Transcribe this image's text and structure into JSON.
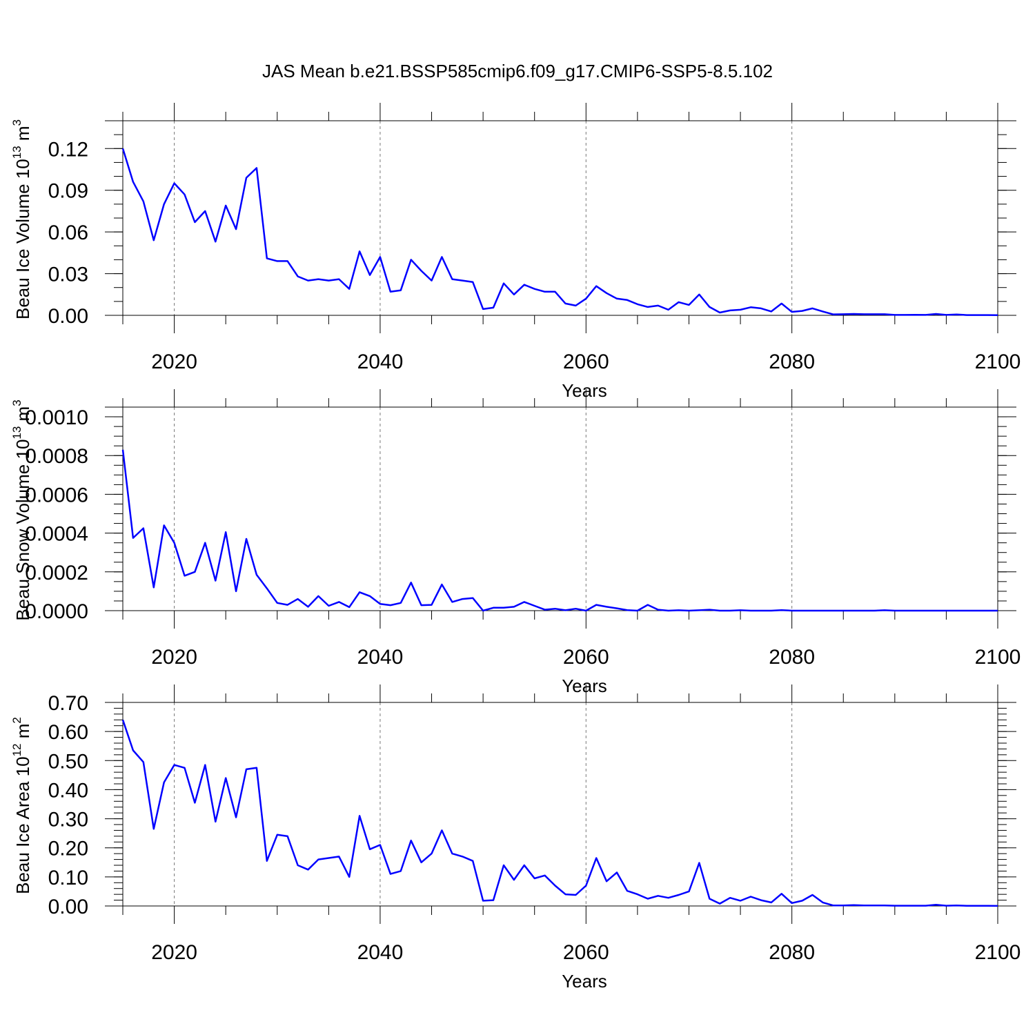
{
  "title": "JAS Mean b.e21.BSSP585cmip6.f09_g17.CMIP6-SSP5-8.5.102",
  "chart_data": [
    {
      "type": "line",
      "ylabel": "Beau Ice Volume 10",
      "ylabel_exp": "13",
      "ylabel_unit": " m",
      "ylabel_unit_exp": "3",
      "xlabel": "Years",
      "xlim": [
        2015,
        2100
      ],
      "ylim": [
        0,
        0.14
      ],
      "yticks": [
        0,
        0.03,
        0.06,
        0.09,
        0.12
      ],
      "ytick_labels": [
        "0.00",
        "0.03",
        "0.06",
        "0.09",
        "0.12"
      ],
      "yminor_step": 0.01,
      "xticks": [
        2020,
        2040,
        2060,
        2080,
        2100
      ],
      "xtick_labels": [
        "2020",
        "2040",
        "2060",
        "2080",
        "2100"
      ],
      "x_start": 2015,
      "series": [
        {
          "name": "Beau Ice Volume",
          "color": "#0000ff",
          "values": [
            0.12,
            0.096,
            0.082,
            0.054,
            0.08,
            0.095,
            0.087,
            0.067,
            0.075,
            0.053,
            0.079,
            0.062,
            0.099,
            0.106,
            0.041,
            0.039,
            0.039,
            0.028,
            0.025,
            0.026,
            0.025,
            0.026,
            0.019,
            0.046,
            0.029,
            0.042,
            0.017,
            0.018,
            0.04,
            0.032,
            0.025,
            0.042,
            0.026,
            0.025,
            0.024,
            0.0045,
            0.0055,
            0.023,
            0.015,
            0.022,
            0.019,
            0.017,
            0.017,
            0.0085,
            0.007,
            0.012,
            0.021,
            0.016,
            0.012,
            0.011,
            0.008,
            0.006,
            0.007,
            0.004,
            0.0095,
            0.0075,
            0.015,
            0.006,
            0.002,
            0.0035,
            0.004,
            0.0058,
            0.005,
            0.0028,
            0.0085,
            0.0025,
            0.0032,
            0.005,
            0.0028,
            0.0007,
            0.0008,
            0.001,
            0.0008,
            0.0008,
            0.0008,
            0.0003,
            0.0003,
            0.0004,
            0.0003,
            0.001,
            0.0003,
            0.0006,
            0.0002,
            0.0002,
            0.0002,
            0.0001
          ]
        }
      ]
    },
    {
      "type": "line",
      "ylabel": "Beau Snow Volume 10",
      "ylabel_exp": "13",
      "ylabel_unit": " m",
      "ylabel_unit_exp": "3",
      "xlabel": "Years",
      "xlim": [
        2015,
        2100
      ],
      "ylim": [
        0,
        0.00105
      ],
      "yticks": [
        0,
        0.0002,
        0.0004,
        0.0006,
        0.0008,
        0.001
      ],
      "ytick_labels": [
        "0.0000",
        "0.0002",
        "0.0004",
        "0.0006",
        "0.0008",
        "0.0010"
      ],
      "yminor_step": 5e-05,
      "xticks": [
        2020,
        2040,
        2060,
        2080,
        2100
      ],
      "xtick_labels": [
        "2020",
        "2040",
        "2060",
        "2080",
        "2100"
      ],
      "x_start": 2015,
      "series": [
        {
          "name": "Beau Snow Volume",
          "color": "#0000ff",
          "values": [
            0.00083,
            0.000375,
            0.000425,
            0.00012,
            0.00044,
            0.00035,
            0.00018,
            0.0002,
            0.00035,
            0.000155,
            0.000405,
            0.0001,
            0.00037,
            0.000185,
            0.000115,
            4e-05,
            3e-05,
            6e-05,
            2e-05,
            7.5e-05,
            2.5e-05,
            4.5e-05,
            1.8e-05,
            9.5e-05,
            7.5e-05,
            3.5e-05,
            2.8e-05,
            4e-05,
            0.000145,
            2.8e-05,
            3e-05,
            0.000135,
            4.5e-05,
            6e-05,
            6.5e-05,
            0.0,
            1.5e-05,
            1.5e-05,
            2e-05,
            4.5e-05,
            2.5e-05,
            5e-06,
            1e-05,
            2e-06,
            1e-05,
            0.0,
            3e-05,
            2e-05,
            1.2e-05,
            3e-06,
            0.0,
            3e-05,
            5e-06,
            0.0,
            2e-06,
            0.0,
            2e-06,
            5e-06,
            0.0,
            0.0,
            2e-06,
            0.0,
            0.0,
            0.0,
            3e-06,
            0.0,
            0.0,
            0.0,
            0.0,
            0.0,
            0.0,
            0.0,
            0.0,
            0.0,
            2e-06,
            0.0,
            0.0,
            0.0,
            0.0,
            0.0,
            0.0,
            0.0,
            0.0,
            0.0,
            0.0,
            0.0
          ]
        }
      ]
    },
    {
      "type": "line",
      "ylabel": "Beau Ice Area 10",
      "ylabel_exp": "12",
      "ylabel_unit": " m",
      "ylabel_unit_exp": "2",
      "xlabel": "Years",
      "xlim": [
        2015,
        2100
      ],
      "ylim": [
        0,
        0.7
      ],
      "yticks": [
        0,
        0.1,
        0.2,
        0.3,
        0.4,
        0.5,
        0.6,
        0.7
      ],
      "ytick_labels": [
        "0.00",
        "0.10",
        "0.20",
        "0.30",
        "0.40",
        "0.50",
        "0.60",
        "0.70"
      ],
      "yminor_step": 0.02,
      "xticks": [
        2020,
        2040,
        2060,
        2080,
        2100
      ],
      "xtick_labels": [
        "2020",
        "2040",
        "2060",
        "2080",
        "2100"
      ],
      "x_start": 2015,
      "series": [
        {
          "name": "Beau Ice Area",
          "color": "#0000ff",
          "values": [
            0.64,
            0.535,
            0.495,
            0.265,
            0.425,
            0.485,
            0.475,
            0.355,
            0.485,
            0.29,
            0.44,
            0.305,
            0.47,
            0.475,
            0.155,
            0.245,
            0.24,
            0.14,
            0.125,
            0.16,
            0.165,
            0.17,
            0.1,
            0.31,
            0.195,
            0.21,
            0.11,
            0.12,
            0.225,
            0.15,
            0.18,
            0.26,
            0.18,
            0.17,
            0.155,
            0.018,
            0.02,
            0.14,
            0.09,
            0.14,
            0.095,
            0.105,
            0.07,
            0.04,
            0.038,
            0.07,
            0.165,
            0.085,
            0.115,
            0.052,
            0.04,
            0.025,
            0.035,
            0.028,
            0.038,
            0.05,
            0.148,
            0.025,
            0.008,
            0.028,
            0.018,
            0.032,
            0.02,
            0.012,
            0.042,
            0.01,
            0.018,
            0.038,
            0.012,
            0.002,
            0.002,
            0.003,
            0.002,
            0.002,
            0.002,
            0.001,
            0.001,
            0.001,
            0.001,
            0.004,
            0.001,
            0.002,
            0.0005,
            0.0005,
            0.0005,
            0.0003
          ]
        }
      ]
    }
  ]
}
